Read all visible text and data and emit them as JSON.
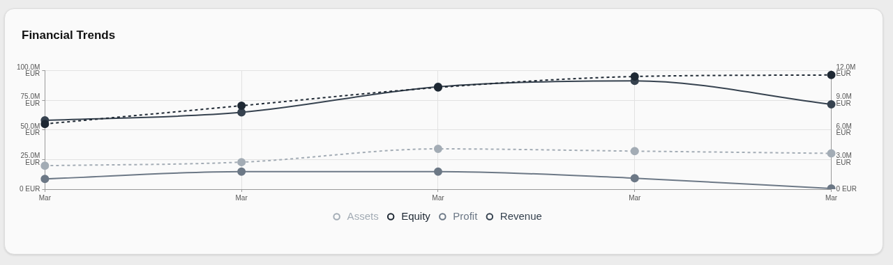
{
  "chart_data": {
    "type": "line",
    "title": "Financial Trends",
    "categories": [
      "Mar",
      "Mar",
      "Mar",
      "Mar",
      "Mar"
    ],
    "series": [
      {
        "name": "Assets",
        "color": "#a3acb5",
        "line_style": "dashed",
        "values": [
          19.8,
          22.8,
          34,
          32.1,
          30.2
        ]
      },
      {
        "name": "Equity",
        "color": "#1e2833",
        "line_style": "dashed",
        "values": [
          55,
          70.4,
          85.8,
          95,
          96.3
        ]
      },
      {
        "name": "Profit",
        "color": "#6c7886",
        "line_style": "solid",
        "axis": "y2",
        "values": [
          1.04,
          1.78,
          1.78,
          1.11,
          0.07
        ]
      },
      {
        "name": "Revenue",
        "color": "#36424f",
        "line_style": "solid",
        "values": [
          58,
          64.8,
          86.4,
          91.4,
          71.6
        ]
      }
    ],
    "ylim": [
      0,
      100
    ],
    "yticks": [
      {
        "value": 0,
        "label": "0 EUR"
      },
      {
        "value": 25,
        "label": "25.0M\nEUR"
      },
      {
        "value": 50,
        "label": "50.0M\nEUR"
      },
      {
        "value": 75,
        "label": "75.0M\nEUR"
      },
      {
        "value": 100,
        "label": "100.0M\nEUR"
      }
    ],
    "y2lim": [
      0,
      12
    ],
    "y2ticks": [
      {
        "value": 0,
        "label": "0 EUR"
      },
      {
        "value": 3,
        "label": "3.0M\nEUR"
      },
      {
        "value": 6,
        "label": "6.0M\nEUR"
      },
      {
        "value": 9,
        "label": "9.0M\nEUR"
      },
      {
        "value": 12,
        "label": "12.0M\nEUR"
      }
    ],
    "grid": true,
    "legend": "bottom",
    "marker": "circle"
  }
}
